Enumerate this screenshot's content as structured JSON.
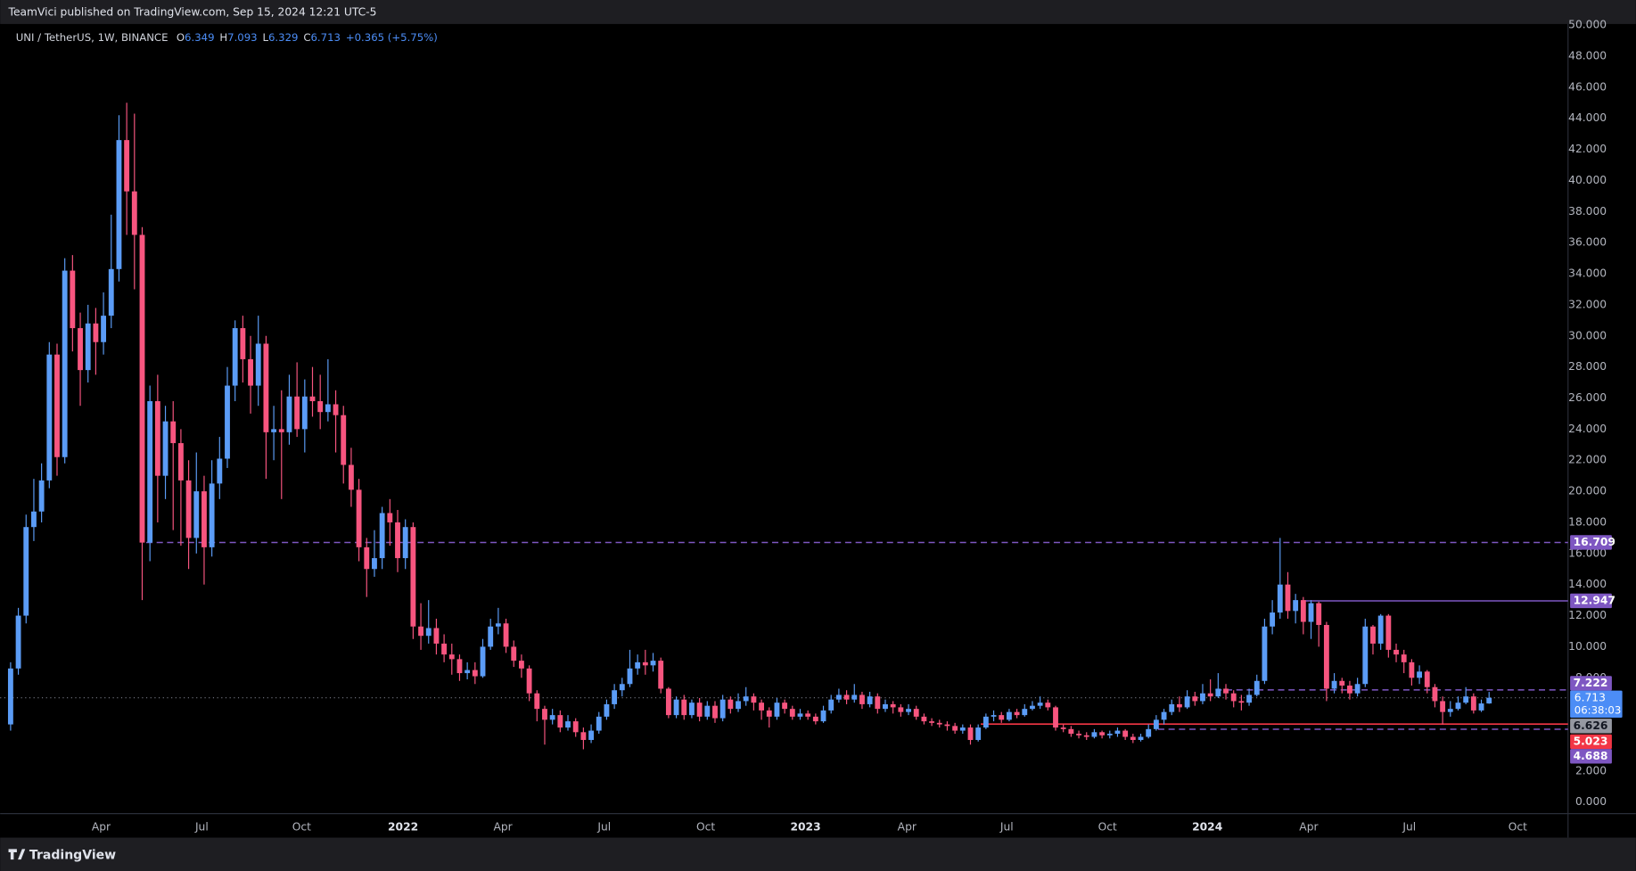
{
  "header": {
    "text": "TeamVici published on TradingView.com, Sep 15, 2024 12:21 UTC-5"
  },
  "chart_data": {
    "type": "candlestick",
    "title": "UNI / TetherUS, 1W, BINANCE",
    "ohlc_prefixes": [
      "O",
      "H",
      "L",
      "C"
    ],
    "change": "+0.365 (+5.75%)",
    "countdown": "06:38:03",
    "up_color": "#5b9cf6",
    "down_color": "#f7557f",
    "grid": false,
    "open": [
      5.0,
      8.6,
      12.0,
      17.7,
      18.7,
      20.7,
      28.8,
      22.2,
      34.2,
      30.5,
      27.8,
      30.8,
      29.6,
      31.3,
      34.3,
      42.6,
      39.3,
      36.5,
      16.7,
      25.8,
      21.0,
      24.5,
      23.1,
      20.7,
      17.0,
      20.0,
      16.4,
      20.5,
      22.1,
      26.8,
      30.5,
      28.5,
      26.8,
      29.5,
      23.8,
      24.0,
      23.8,
      26.1,
      24.0,
      26.1,
      25.8,
      25.1,
      25.6,
      24.9,
      21.7,
      20.1,
      16.4,
      15.0,
      15.7,
      18.6,
      18.0,
      15.7,
      17.7,
      11.3,
      10.7,
      11.2,
      10.2,
      9.5,
      9.2,
      8.3,
      8.5,
      8.1,
      10.0,
      11.3,
      11.5,
      10.0,
      9.1,
      8.6,
      7.0,
      6.0,
      5.3,
      5.6,
      4.8,
      5.2,
      4.5,
      4.0,
      4.6,
      5.5,
      6.3,
      7.2,
      7.6,
      8.6,
      9.0,
      8.8,
      9.1,
      7.3,
      5.6,
      6.6,
      5.6,
      6.4,
      5.5,
      6.2,
      5.4,
      6.6,
      6.0,
      6.5,
      6.8,
      6.4,
      5.9,
      5.5,
      6.4,
      6.0,
      5.5,
      5.7,
      5.5,
      5.2,
      5.9,
      6.6,
      6.9,
      6.6,
      6.9,
      6.3,
      6.8,
      6.0,
      6.3,
      6.1,
      5.8,
      6.0,
      5.5,
      5.2,
      5.1,
      5.0,
      4.9,
      4.6,
      4.8,
      4.0,
      4.8,
      5.5,
      5.6,
      5.3,
      5.8,
      5.6,
      6.0,
      6.2,
      6.4,
      6.1,
      4.8,
      4.7,
      4.4,
      4.3,
      4.2,
      4.5,
      4.3,
      4.4,
      4.6,
      4.2,
      4.0,
      4.2,
      4.7,
      5.3,
      5.8,
      6.3,
      6.1,
      6.8,
      6.5,
      7.0,
      6.8,
      7.3,
      7.0,
      6.5,
      6.4,
      6.9,
      7.8,
      11.3,
      12.2,
      14.0,
      12.3,
      13.0,
      11.6,
      12.8,
      11.4,
      7.3,
      7.8,
      7.5,
      7.0,
      7.6,
      11.3,
      10.2,
      12.0,
      9.8,
      9.5,
      9.0,
      8.0,
      8.4,
      7.4,
      6.5,
      5.8,
      6.0,
      6.4,
      6.8,
      5.9,
      6.349
    ],
    "high": [
      9.0,
      12.5,
      18.5,
      20.8,
      21.8,
      29.6,
      29.5,
      35.0,
      35.2,
      31.5,
      32.0,
      31.8,
      32.8,
      37.8,
      44.2,
      45.0,
      44.3,
      37.0,
      26.8,
      27.5,
      25.5,
      25.8,
      24.0,
      22.0,
      22.5,
      21.0,
      22.0,
      23.5,
      28.0,
      31.0,
      31.3,
      30.0,
      31.3,
      30.0,
      25.5,
      26.5,
      27.5,
      28.3,
      27.2,
      28.0,
      27.5,
      28.5,
      26.5,
      25.5,
      22.8,
      20.8,
      17.0,
      17.5,
      19.0,
      19.5,
      18.8,
      18.2,
      18.0,
      12.8,
      13.0,
      11.8,
      10.8,
      10.2,
      9.5,
      9.0,
      9.0,
      10.5,
      11.8,
      12.5,
      11.8,
      10.4,
      9.5,
      8.8,
      7.2,
      6.2,
      6.0,
      5.9,
      5.6,
      5.4,
      4.8,
      5.0,
      5.8,
      6.6,
      7.6,
      8.0,
      9.8,
      9.5,
      9.8,
      9.6,
      9.3,
      7.4,
      6.8,
      6.9,
      6.6,
      6.7,
      6.5,
      6.5,
      6.9,
      6.8,
      7.0,
      7.4,
      7.0,
      6.6,
      6.1,
      6.7,
      6.6,
      6.2,
      6.0,
      5.9,
      5.7,
      6.2,
      6.9,
      7.3,
      7.2,
      7.6,
      7.1,
      7.1,
      7.0,
      6.6,
      6.5,
      6.3,
      6.3,
      6.2,
      5.7,
      5.4,
      5.3,
      5.2,
      5.1,
      5.0,
      5.0,
      5.0,
      5.7,
      5.9,
      5.8,
      6.0,
      6.0,
      6.3,
      6.5,
      6.8,
      6.6,
      6.2,
      5.0,
      4.9,
      4.6,
      4.5,
      4.7,
      4.6,
      4.6,
      4.8,
      4.7,
      4.4,
      4.4,
      5.0,
      5.6,
      6.0,
      6.6,
      6.8,
      7.2,
      7.1,
      7.6,
      7.9,
      8.3,
      7.6,
      7.2,
      6.9,
      7.3,
      8.2,
      11.8,
      13.0,
      17.0,
      14.8,
      13.4,
      13.2,
      13.0,
      12.9,
      11.6,
      8.3,
      8.0,
      7.8,
      8.0,
      11.8,
      11.4,
      12.1,
      12.1,
      10.2,
      9.8,
      9.2,
      8.8,
      8.5,
      7.6,
      6.8,
      6.5,
      6.8,
      7.4,
      7.0,
      6.6,
      7.093
    ],
    "low": [
      4.6,
      8.2,
      11.5,
      16.8,
      18.0,
      20.2,
      21.0,
      21.8,
      29.0,
      25.5,
      27.0,
      27.5,
      28.8,
      30.5,
      33.5,
      36.5,
      33.0,
      13.0,
      15.5,
      18.0,
      19.5,
      17.5,
      16.5,
      15.0,
      16.0,
      14.0,
      15.8,
      19.5,
      21.5,
      25.8,
      27.0,
      25.0,
      25.5,
      20.8,
      22.0,
      19.5,
      23.0,
      23.5,
      22.5,
      24.8,
      24.0,
      24.5,
      22.5,
      20.5,
      19.0,
      15.5,
      13.2,
      14.5,
      15.0,
      16.5,
      14.8,
      15.0,
      10.5,
      9.8,
      10.2,
      9.5,
      9.0,
      8.2,
      7.8,
      7.9,
      7.6,
      8.0,
      9.8,
      10.8,
      9.6,
      8.7,
      8.0,
      6.5,
      5.2,
      3.7,
      5.0,
      4.5,
      4.6,
      4.2,
      3.4,
      3.8,
      4.4,
      5.3,
      6.0,
      6.8,
      7.4,
      8.2,
      8.2,
      8.4,
      7.0,
      5.4,
      5.4,
      5.3,
      5.4,
      5.2,
      5.3,
      5.1,
      5.2,
      5.7,
      5.8,
      6.2,
      5.9,
      5.3,
      4.8,
      5.3,
      5.7,
      5.3,
      5.3,
      5.3,
      5.0,
      5.1,
      5.7,
      6.4,
      6.3,
      6.4,
      6.0,
      6.1,
      5.7,
      5.8,
      5.7,
      5.5,
      5.6,
      5.3,
      5.0,
      4.9,
      4.8,
      4.6,
      4.4,
      4.4,
      3.7,
      3.9,
      4.7,
      5.2,
      5.1,
      5.2,
      5.4,
      5.5,
      5.9,
      6.0,
      5.9,
      4.6,
      4.5,
      4.2,
      4.1,
      4.0,
      4.1,
      4.1,
      4.1,
      4.2,
      4.0,
      3.8,
      3.9,
      4.1,
      4.6,
      5.0,
      5.6,
      5.8,
      6.0,
      6.2,
      6.3,
      6.5,
      6.7,
      6.6,
      6.1,
      5.9,
      6.2,
      6.8,
      7.6,
      10.8,
      11.8,
      11.8,
      11.5,
      10.8,
      10.5,
      10.0,
      6.5,
      7.0,
      7.0,
      6.6,
      6.8,
      7.4,
      9.5,
      9.8,
      9.3,
      9.0,
      8.3,
      7.5,
      7.6,
      7.0,
      6.1,
      5.0,
      5.5,
      5.9,
      6.3,
      5.7,
      5.8,
      6.329
    ],
    "close": [
      8.6,
      12.0,
      17.7,
      18.7,
      20.7,
      28.8,
      22.2,
      34.2,
      30.5,
      27.8,
      30.8,
      29.6,
      31.3,
      34.3,
      42.6,
      39.3,
      36.5,
      16.7,
      25.8,
      21.0,
      24.5,
      23.1,
      20.7,
      17.0,
      20.0,
      16.4,
      20.5,
      22.1,
      26.8,
      30.5,
      28.5,
      26.8,
      29.5,
      23.8,
      24.0,
      23.8,
      26.1,
      24.0,
      26.1,
      25.8,
      25.1,
      25.6,
      24.9,
      21.7,
      20.1,
      16.4,
      15.0,
      15.7,
      18.6,
      18.0,
      15.7,
      17.7,
      11.3,
      10.7,
      11.2,
      10.2,
      9.5,
      9.2,
      8.3,
      8.5,
      8.1,
      10.0,
      11.3,
      11.5,
      10.0,
      9.1,
      8.6,
      7.0,
      6.0,
      5.3,
      5.6,
      4.8,
      5.2,
      4.5,
      4.0,
      4.6,
      5.5,
      6.3,
      7.2,
      7.6,
      8.6,
      9.0,
      8.8,
      9.1,
      7.3,
      5.6,
      6.6,
      5.6,
      6.4,
      5.5,
      6.2,
      5.4,
      6.6,
      6.0,
      6.5,
      6.8,
      6.4,
      5.9,
      5.5,
      6.4,
      6.0,
      5.5,
      5.7,
      5.5,
      5.2,
      5.9,
      6.6,
      6.9,
      6.6,
      6.9,
      6.3,
      6.8,
      6.0,
      6.3,
      6.1,
      5.8,
      6.0,
      5.5,
      5.2,
      5.1,
      5.0,
      4.9,
      4.6,
      4.8,
      4.0,
      4.8,
      5.5,
      5.6,
      5.3,
      5.8,
      5.6,
      6.0,
      6.2,
      6.4,
      6.1,
      4.8,
      4.7,
      4.4,
      4.3,
      4.2,
      4.5,
      4.3,
      4.4,
      4.6,
      4.2,
      4.0,
      4.2,
      4.7,
      5.3,
      5.8,
      6.3,
      6.1,
      6.8,
      6.5,
      7.0,
      6.8,
      7.3,
      7.0,
      6.5,
      6.4,
      6.9,
      7.8,
      11.3,
      12.2,
      14.0,
      12.3,
      13.0,
      11.6,
      12.8,
      11.4,
      7.3,
      7.8,
      7.5,
      7.0,
      7.6,
      11.3,
      10.2,
      12.0,
      9.8,
      9.5,
      9.0,
      8.0,
      8.4,
      7.4,
      6.5,
      5.8,
      6.0,
      6.4,
      6.8,
      5.9,
      6.349,
      6.713
    ],
    "xlim": [
      -1.35,
      201.2
    ],
    "ylim": [
      -0.74,
      50.07
    ],
    "xticks": [
      {
        "value": 11.7,
        "label": "Apr"
      },
      {
        "value": 24.7,
        "label": "Jul"
      },
      {
        "value": 37.6,
        "label": "Oct"
      },
      {
        "value": 50.7,
        "label": "2022"
      },
      {
        "value": 63.6,
        "label": "Apr"
      },
      {
        "value": 76.7,
        "label": "Jul"
      },
      {
        "value": 89.8,
        "label": "Oct"
      },
      {
        "value": 102.7,
        "label": "2023"
      },
      {
        "value": 115.8,
        "label": "Apr"
      },
      {
        "value": 128.7,
        "label": "Jul"
      },
      {
        "value": 141.7,
        "label": "Oct"
      },
      {
        "value": 154.6,
        "label": "2024"
      },
      {
        "value": 167.7,
        "label": "Apr"
      },
      {
        "value": 180.7,
        "label": "Jul"
      },
      {
        "value": 194.7,
        "label": "Oct"
      }
    ],
    "yticks": [
      {
        "value": 0,
        "label": "0.000"
      },
      {
        "value": 2,
        "label": "2.000"
      },
      {
        "value": 4,
        "label": "4.000"
      },
      {
        "value": 6,
        "label": "6.000"
      },
      {
        "value": 8,
        "label": "8.000"
      },
      {
        "value": 10,
        "label": "10.000"
      },
      {
        "value": 12,
        "label": "12.000"
      },
      {
        "value": 14,
        "label": "14.000"
      },
      {
        "value": 16,
        "label": "16.000"
      },
      {
        "value": 18,
        "label": "18.000"
      },
      {
        "value": 20,
        "label": "20.000"
      },
      {
        "value": 22,
        "label": "22.000"
      },
      {
        "value": 24,
        "label": "24.000"
      },
      {
        "value": 26,
        "label": "26.000"
      },
      {
        "value": 28,
        "label": "28.000"
      },
      {
        "value": 30,
        "label": "30.000"
      },
      {
        "value": 32,
        "label": "32.000"
      },
      {
        "value": 34,
        "label": "34.000"
      },
      {
        "value": 36,
        "label": "36.000"
      },
      {
        "value": 38,
        "label": "38.000"
      },
      {
        "value": 40,
        "label": "40.000"
      },
      {
        "value": 42,
        "label": "42.000"
      },
      {
        "value": 44,
        "label": "44.000"
      },
      {
        "value": 46,
        "label": "46.000"
      },
      {
        "value": 48,
        "label": "48.000"
      },
      {
        "value": 50,
        "label": "50.000"
      }
    ],
    "last_price_color": "#4c8df6",
    "levels": [
      {
        "value": 16.709,
        "color": "#7e57c2",
        "style": "dashed"
      },
      {
        "value": 12.947,
        "color": "#7e57c2",
        "style": "solid"
      },
      {
        "value": 7.222,
        "color": "#7e57c2",
        "style": "dashed"
      },
      {
        "value": 6.626,
        "color": "#9598a1",
        "style": "none"
      },
      {
        "value": 5.023,
        "color": "#f23645",
        "style": "solid"
      },
      {
        "value": 4.688,
        "color": "#7e57c2",
        "style": "dashed"
      }
    ]
  },
  "footer": {
    "brand": "TradingView"
  }
}
